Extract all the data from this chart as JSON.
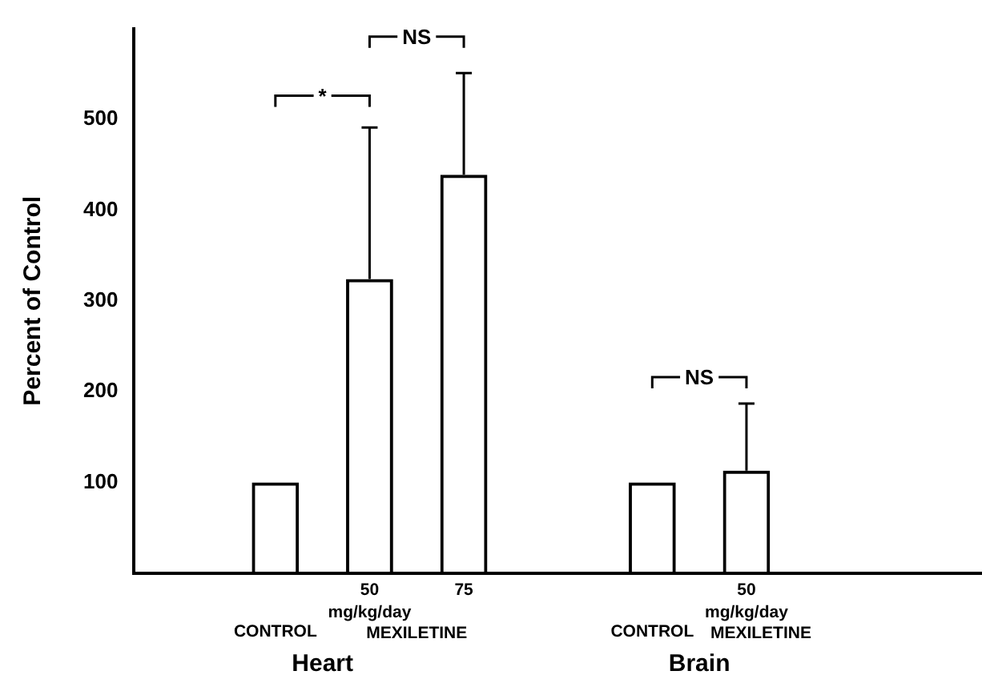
{
  "chart_data": {
    "type": "bar",
    "ylabel": "Percent of Control",
    "categories": [
      null,
      "CONTROL",
      "50",
      "75",
      null,
      "CONTROL",
      "50",
      null,
      null
    ],
    "values": [
      null,
      100,
      324,
      439,
      null,
      100,
      113,
      null,
      null
    ],
    "errors": [
      null,
      null,
      [
        324,
        491
      ],
      [
        439,
        551
      ],
      null,
      null,
      [
        113,
        187
      ],
      null,
      null
    ],
    "color": "#000000",
    "ylim": [
      0,
      600
    ],
    "yticks": [
      100,
      200,
      300,
      400,
      500
    ],
    "grid": false,
    "legend": false,
    "annotations": [
      "mg/kg/day",
      "MEXILETINE",
      "mg/kg/day",
      "MEXILETINE",
      "Heart",
      "Brain",
      "*",
      "NS",
      "NS"
    ]
  }
}
